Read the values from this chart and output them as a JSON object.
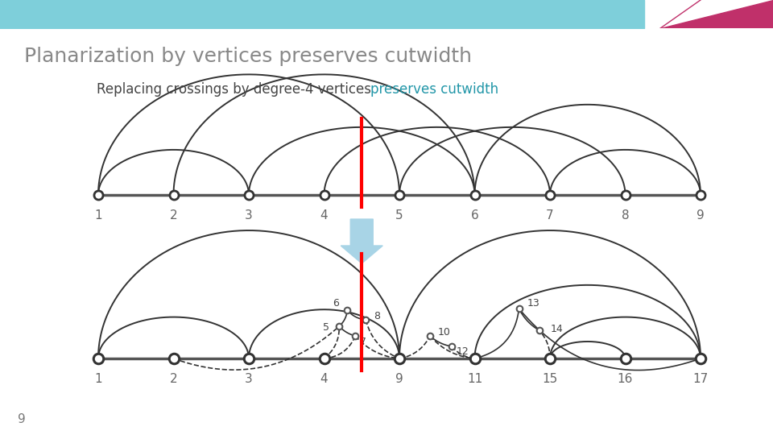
{
  "title": "Planarization by vertices preserves cutwidth",
  "subtitle_black": "Replacing crossings by degree-4 vertices ",
  "subtitle_blue": "preserves cutwidth",
  "subtitle_color": "#2196a8",
  "page_number": "9",
  "background_color": "#ffffff",
  "fig_width": 9.6,
  "fig_height": 5.4,
  "dpi": 100
}
